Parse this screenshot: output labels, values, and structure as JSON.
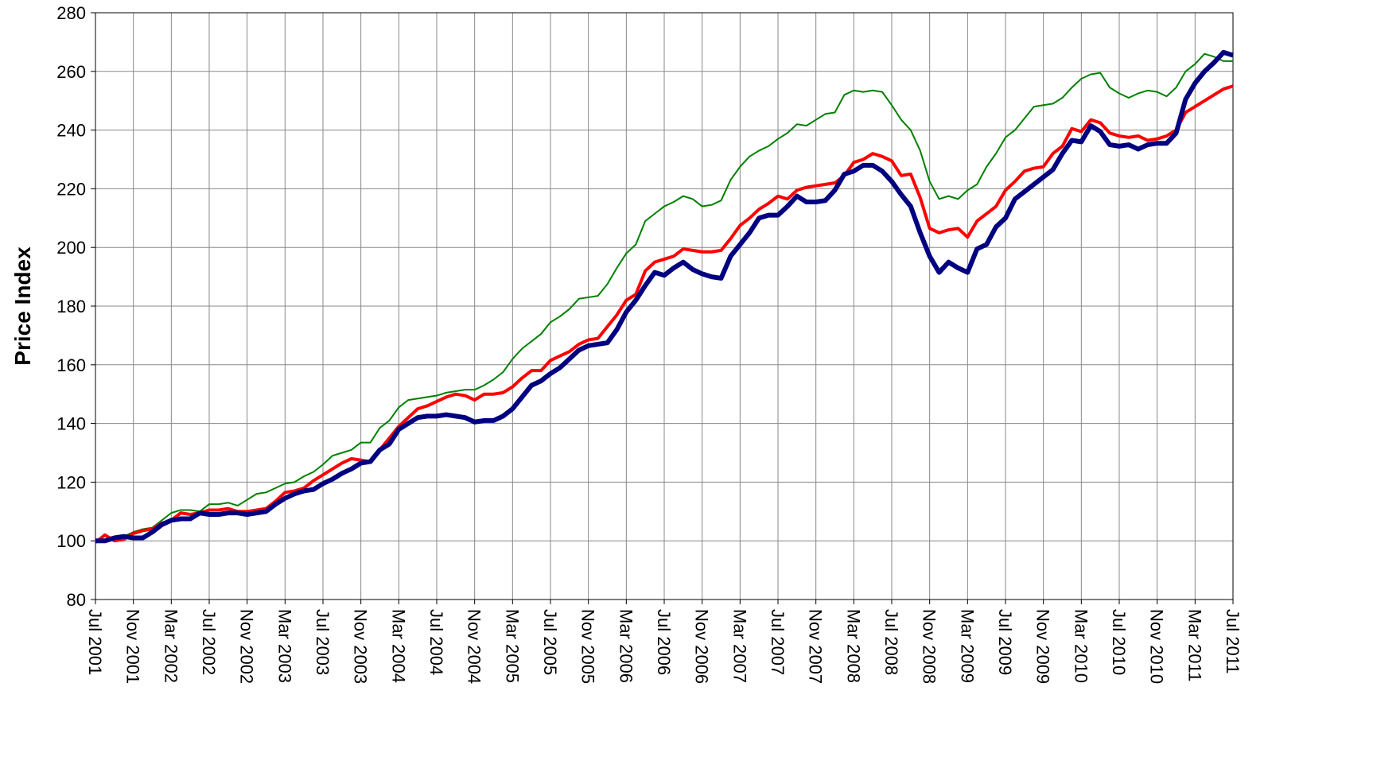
{
  "chart_data": {
    "type": "line",
    "y_label": "Price Index",
    "categories": [
      "Jul 2001",
      null,
      null,
      null,
      "Nov 2001",
      null,
      null,
      null,
      "Mar 2002",
      null,
      null,
      null,
      "Jul 2002",
      null,
      null,
      null,
      "Nov 2002",
      null,
      null,
      null,
      "Mar 2003",
      null,
      null,
      null,
      "Jul 2003",
      null,
      null,
      null,
      "Nov 2003",
      null,
      null,
      null,
      "Mar 2004",
      null,
      null,
      null,
      "Jul 2004",
      null,
      null,
      null,
      "Nov 2004",
      null,
      null,
      null,
      "Mar 2005",
      null,
      null,
      null,
      "Jul 2005",
      null,
      null,
      null,
      "Nov 2005",
      null,
      null,
      null,
      "Mar 2006",
      null,
      null,
      null,
      "Jul 2006",
      null,
      null,
      null,
      "Nov 2006",
      null,
      null,
      null,
      "Mar 2007",
      null,
      null,
      null,
      "Jul 2007",
      null,
      null,
      null,
      "Nov 2007",
      null,
      null,
      null,
      "Mar 2008",
      null,
      null,
      null,
      "Jul 2008",
      null,
      null,
      null,
      "Nov 2008",
      null,
      null,
      null,
      "Mar 2009",
      null,
      null,
      null,
      "Jul 2009",
      null,
      null,
      null,
      "Nov 2009",
      null,
      null,
      null,
      "Mar 2010",
      null,
      null,
      null,
      "Jul 2010",
      null,
      null,
      null,
      "Nov 2010",
      null,
      null,
      null,
      "Mar 2011",
      null,
      null,
      null,
      "Jul 2011"
    ],
    "series": [
      {
        "color": "#008000",
        "line_width": 2,
        "values": [
          100,
          100.5,
          101,
          101.5,
          103,
          104,
          104.5,
          107,
          109.5,
          110.5,
          110.5,
          110,
          112.5,
          112.5,
          113,
          112,
          114,
          116,
          116.5,
          118,
          119.5,
          120,
          122,
          123.5,
          126,
          129,
          130,
          131,
          133.5,
          133.5,
          138.5,
          141,
          145.5,
          148,
          148.5,
          149,
          149.5,
          150.5,
          151,
          151.5,
          151.5,
          153,
          155,
          157.5,
          162,
          165.5,
          168,
          170.5,
          174.5,
          176.5,
          179,
          182.5,
          183,
          183.5,
          187.5,
          193,
          198,
          201,
          209,
          211.5,
          214,
          215.5,
          217.5,
          216.5,
          214,
          214.5,
          216,
          223,
          227.5,
          231,
          233,
          234.5,
          237,
          239,
          242,
          241.5,
          243.5,
          245.5,
          246,
          252,
          253.5,
          253,
          253.5,
          253,
          248.5,
          243.5,
          240,
          233,
          222.5,
          216.5,
          217.5,
          216.5,
          219.5,
          221.5,
          227.5,
          232,
          237.5,
          240,
          244,
          248,
          248.5,
          249,
          251,
          254.5,
          257.5,
          259,
          259.5,
          254.5,
          252.5,
          251,
          252.5,
          253.5,
          253,
          251.5,
          254.5,
          260,
          262.5,
          266,
          265,
          263.5,
          263.5
        ]
      },
      {
        "color": "#ff0000",
        "line_width": 4,
        "values": [
          99.5,
          102,
          100,
          100.5,
          102.5,
          103.5,
          104,
          106,
          107,
          109.5,
          109,
          109.5,
          110.5,
          110.5,
          111,
          110,
          110,
          110.5,
          111,
          113.5,
          116.5,
          117,
          118,
          120.5,
          122.5,
          124.5,
          126.5,
          128,
          127.5,
          127,
          131,
          135,
          139,
          142,
          145,
          146,
          147.5,
          149,
          150,
          149.5,
          148,
          150,
          150,
          150.5,
          152.5,
          155.5,
          158,
          158,
          161.5,
          163,
          164.5,
          167,
          168.5,
          169,
          173,
          177,
          182,
          184,
          192,
          195,
          196,
          197,
          199.5,
          199,
          198.5,
          198.5,
          199,
          203,
          207.5,
          210,
          213,
          215,
          217.5,
          216.5,
          219.5,
          220.5,
          221,
          221.5,
          222,
          224.5,
          229,
          230,
          232,
          231,
          229.5,
          224.5,
          225,
          217,
          206.5,
          205,
          206,
          206.5,
          203.5,
          209,
          211.5,
          214,
          219.5,
          222.5,
          226,
          227,
          227.5,
          232,
          234.5,
          240.5,
          239.5,
          243.5,
          242.5,
          239,
          238,
          237.5,
          238,
          236.5,
          237,
          238,
          240,
          246,
          248,
          250,
          252,
          254,
          255
        ]
      },
      {
        "color": "#000080",
        "line_width": 6,
        "values": [
          100,
          100,
          101,
          101.5,
          101,
          101,
          103,
          105.5,
          107,
          107.5,
          107.5,
          109.5,
          109,
          109,
          109.5,
          109.5,
          109,
          109.5,
          110,
          112.5,
          114.5,
          116,
          117,
          117.5,
          119.5,
          121,
          123,
          124.5,
          126.5,
          127,
          131,
          133,
          138,
          140,
          142,
          142.5,
          142.5,
          143,
          142.5,
          142,
          140.5,
          141,
          141,
          142.5,
          145,
          149,
          153,
          154.5,
          157,
          159,
          162,
          165,
          166.5,
          167,
          167.5,
          172,
          178,
          182,
          187,
          191.5,
          190.5,
          193,
          195,
          192.5,
          191,
          190,
          189.5,
          197,
          201,
          205,
          210,
          211,
          211,
          214,
          217.5,
          215.5,
          215.5,
          216,
          219.5,
          225,
          226,
          228,
          228,
          226,
          222.5,
          218,
          214,
          205,
          197,
          191.5,
          195,
          193,
          191.5,
          199.5,
          201,
          207,
          210,
          216.5,
          219,
          221.5,
          224,
          226.5,
          232,
          236.5,
          236,
          241.5,
          239.5,
          235,
          234.5,
          235,
          233.5,
          235,
          235.5,
          235.5,
          239,
          250.5,
          256,
          260,
          263,
          266.5,
          265.5
        ]
      }
    ],
    "ylim": [
      80,
      280
    ],
    "yticks": [
      80,
      100,
      120,
      140,
      160,
      180,
      200,
      220,
      240,
      260,
      280
    ],
    "grid": true
  }
}
